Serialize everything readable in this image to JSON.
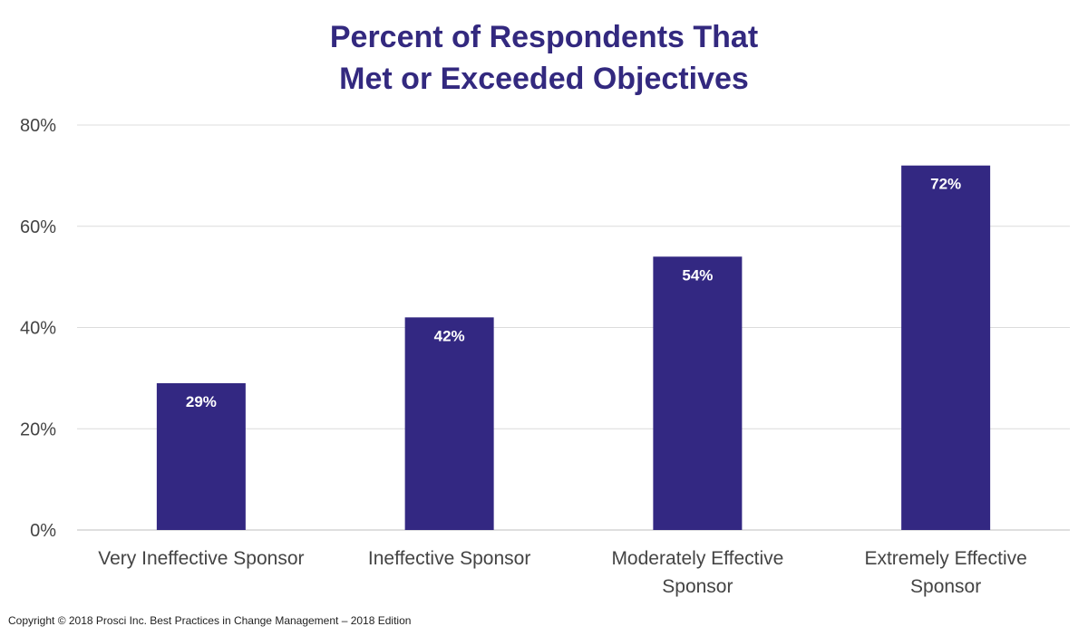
{
  "chart_data": {
    "type": "bar",
    "title_lines": [
      "Percent of Respondents That",
      "Met or Exceeded Objectives"
    ],
    "categories": [
      [
        "Very Ineffective Sponsor"
      ],
      [
        "Ineffective Sponsor"
      ],
      [
        "Moderately Effective",
        "Sponsor"
      ],
      [
        "Extremely Effective",
        "Sponsor"
      ]
    ],
    "values": [
      29,
      42,
      54,
      72
    ],
    "data_labels": [
      "29%",
      "42%",
      "54%",
      "72%"
    ],
    "y_ticks": [
      0,
      20,
      40,
      60,
      80
    ],
    "y_tick_labels": [
      "0%",
      "20%",
      "40%",
      "60%",
      "80%"
    ],
    "ylim": [
      0,
      80
    ],
    "grid": true,
    "legend": "none",
    "bar_color": "#332882",
    "label_color": "#ffffff",
    "title_color": "#33297f"
  },
  "footer": {
    "copyright": "Copyright © 2018 Prosci Inc. Best Practices in Change Management – 2018 Edition"
  }
}
